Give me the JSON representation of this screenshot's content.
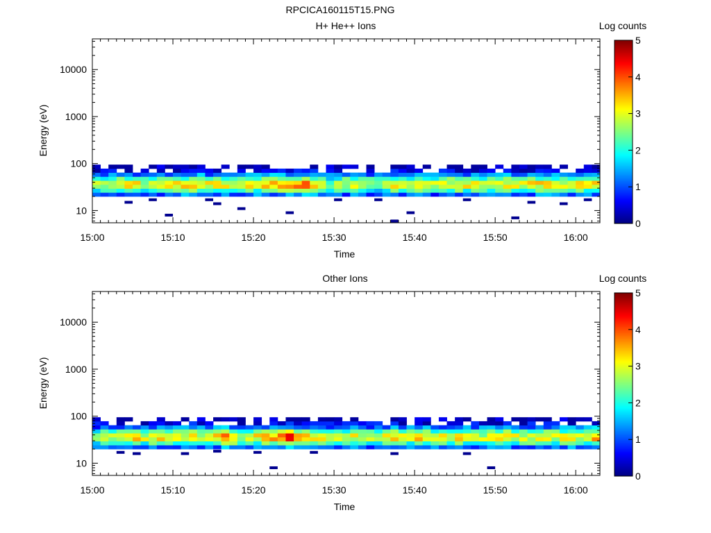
{
  "figure": {
    "title": "RPCICA160115T15.PNG"
  },
  "colorbar": {
    "label": "Log counts",
    "range": [
      0,
      5
    ],
    "ticks": [
      "0",
      "1",
      "2",
      "3",
      "4",
      "5"
    ],
    "colormap": "jet"
  },
  "chart_data": [
    {
      "type": "heatmap",
      "title": "H+ He++ Ions",
      "xlabel": "Time",
      "ylabel": "Energy (eV)",
      "y_scale": "log",
      "xlim": [
        "15:00",
        "16:03"
      ],
      "ylim": [
        5.5,
        45000
      ],
      "x_ticks": [
        "15:00",
        "15:10",
        "15:20",
        "15:30",
        "15:40",
        "15:50",
        "16:00"
      ],
      "y_ticks": [
        "10",
        "100",
        "1000",
        "10000"
      ],
      "z_label": "Log counts",
      "zlim": [
        0,
        5
      ],
      "energy_range_eV": [
        20,
        95
      ],
      "time_step_minutes": 1,
      "z_column_peaks": [
        2.6,
        2.8,
        2.9,
        3.0,
        3.2,
        3.1,
        2.7,
        2.9,
        3.0,
        3.1,
        3.2,
        3.3,
        3.4,
        3.3,
        3.1,
        3.2,
        3.0,
        2.7,
        3.0,
        3.1,
        3.2,
        3.3,
        3.4,
        3.5,
        3.6,
        3.7,
        4.0,
        3.3,
        3.0,
        2.6,
        2.8,
        2.9,
        3.0,
        3.1,
        2.8,
        2.7,
        3.1,
        3.2,
        3.0,
        2.9,
        3.2,
        3.1,
        2.8,
        3.0,
        3.1,
        3.3,
        3.2,
        3.0,
        2.9,
        3.0,
        3.1,
        3.2,
        3.0,
        2.9,
        3.1,
        3.2,
        3.3,
        3.0,
        2.9,
        3.1,
        3.2,
        3.0,
        3.3
      ],
      "sparse_low_energy_hits": [
        {
          "time": "15:04",
          "energy_eV": 15
        },
        {
          "time": "15:07",
          "energy_eV": 17
        },
        {
          "time": "15:09",
          "energy_eV": 8
        },
        {
          "time": "15:14",
          "energy_eV": 17
        },
        {
          "time": "15:15",
          "energy_eV": 14
        },
        {
          "time": "15:18",
          "energy_eV": 11
        },
        {
          "time": "15:24",
          "energy_eV": 9
        },
        {
          "time": "15:30",
          "energy_eV": 17
        },
        {
          "time": "15:35",
          "energy_eV": 17
        },
        {
          "time": "15:37",
          "energy_eV": 6
        },
        {
          "time": "15:39",
          "energy_eV": 9
        },
        {
          "time": "15:46",
          "energy_eV": 17
        },
        {
          "time": "15:52",
          "energy_eV": 7
        },
        {
          "time": "15:54",
          "energy_eV": 15
        },
        {
          "time": "15:58",
          "energy_eV": 14
        },
        {
          "time": "16:01",
          "energy_eV": 17
        }
      ]
    },
    {
      "type": "heatmap",
      "title": "Other Ions",
      "xlabel": "Time",
      "ylabel": "Energy (eV)",
      "y_scale": "log",
      "xlim": [
        "15:00",
        "16:03"
      ],
      "ylim": [
        5.5,
        45000
      ],
      "x_ticks": [
        "15:00",
        "15:10",
        "15:20",
        "15:30",
        "15:40",
        "15:50",
        "16:00"
      ],
      "y_ticks": [
        "10",
        "100",
        "1000",
        "10000"
      ],
      "z_label": "Log counts",
      "zlim": [
        0,
        5
      ],
      "energy_range_eV": [
        20,
        95
      ],
      "time_step_minutes": 1,
      "z_column_peaks": [
        2.6,
        2.8,
        3.0,
        3.1,
        3.2,
        3.3,
        3.0,
        3.2,
        3.3,
        3.4,
        3.2,
        3.1,
        3.3,
        3.0,
        3.1,
        3.2,
        3.9,
        3.4,
        3.0,
        3.1,
        3.2,
        3.4,
        3.5,
        3.6,
        4.2,
        3.7,
        3.4,
        3.3,
        3.1,
        2.8,
        2.9,
        3.0,
        3.1,
        2.9,
        2.8,
        3.0,
        3.1,
        3.2,
        3.0,
        3.1,
        3.3,
        3.2,
        3.0,
        3.1,
        3.2,
        3.3,
        3.1,
        3.0,
        2.9,
        3.1,
        3.2,
        3.3,
        3.1,
        3.0,
        3.1,
        3.3,
        3.2,
        3.0,
        3.1,
        3.2,
        3.0,
        3.1,
        3.6
      ],
      "sparse_low_energy_hits": [
        {
          "time": "15:03",
          "energy_eV": 17
        },
        {
          "time": "15:05",
          "energy_eV": 16
        },
        {
          "time": "15:11",
          "energy_eV": 16
        },
        {
          "time": "15:15",
          "energy_eV": 18
        },
        {
          "time": "15:20",
          "energy_eV": 17
        },
        {
          "time": "15:22",
          "energy_eV": 8
        },
        {
          "time": "15:27",
          "energy_eV": 17
        },
        {
          "time": "15:37",
          "energy_eV": 16
        },
        {
          "time": "15:46",
          "energy_eV": 16
        },
        {
          "time": "15:49",
          "energy_eV": 8
        }
      ]
    }
  ]
}
